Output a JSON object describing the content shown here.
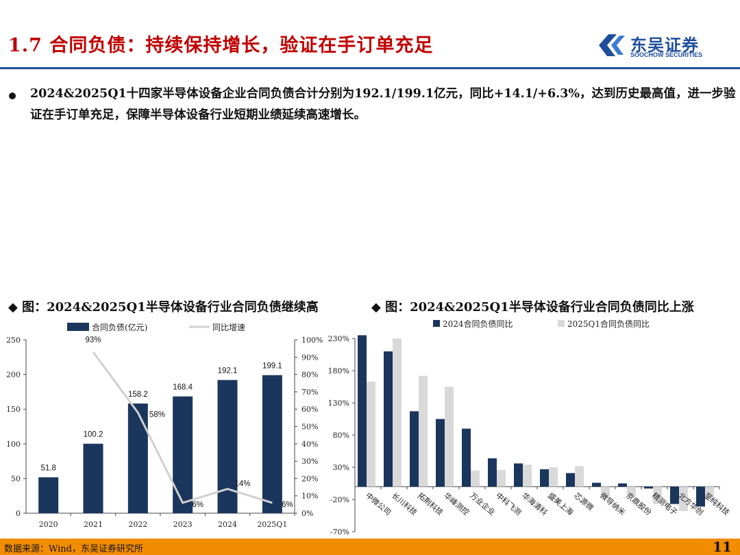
{
  "header": {
    "title": "1.7 合同负债：持续保持增长，验证在手订单充足"
  },
  "logo": {
    "cn": "东吴证券",
    "en": "SOOCHOW SECURITIES"
  },
  "body": {
    "paragraph": "2024&2025Q1十四家半导体设备企业合同负债合计分别为192.1/199.1亿元，同比+14.1/+6.3%，达到历史最高值，进一步验证在手订单充足，保障半导体设备行业短期业绩延续高速增长。"
  },
  "chart1_title": "◆ 图：2024&2025Q1半导体设备行业合同负债继续高",
  "chart2_title": "◆ 图：2024&2025Q1半导体设备行业合同负债同比上涨",
  "footer": {
    "source": "数据来源：Wind，东吴证券研究所",
    "page": "11"
  },
  "colors": {
    "navy": "#1b365d",
    "gray": "#d9d9d9",
    "line": "#d0d0d0",
    "title_red": "#c00000",
    "footer_orange": "#f28c00"
  },
  "chart_data": [
    {
      "type": "bar",
      "categories": [
        "2020",
        "2021",
        "2022",
        "2023",
        "2024",
        "2025Q1"
      ],
      "series": [
        {
          "name": "合同负债(亿元)",
          "values": [
            51.8,
            100.2,
            158.2,
            168.4,
            192.1,
            199.1
          ],
          "labels": [
            "51.8",
            "100.2",
            "158.2",
            "168.4",
            "192.1",
            "199.1"
          ]
        },
        {
          "name": "同比增速",
          "type": "line",
          "axis": "right",
          "values": [
            null,
            93,
            58,
            6,
            14,
            6
          ],
          "labels": [
            "",
            "93%",
            "58%",
            "6%",
            "14%",
            "6%"
          ]
        }
      ],
      "yticks_left": [
        "0",
        "50",
        "100",
        "150",
        "200",
        "250"
      ],
      "ylim_left": [
        0,
        250
      ],
      "yticks_right": [
        "0%",
        "10%",
        "20%",
        "30%",
        "40%",
        "50%",
        "60%",
        "70%",
        "80%",
        "90%",
        "100%"
      ],
      "ylim_right": [
        0,
        100
      ],
      "legend": "top"
    },
    {
      "type": "bar",
      "categories": [
        "中微公司",
        "长川科技",
        "拓荆科技",
        "华峰测控",
        "万业企业",
        "中科飞测",
        "华海清科",
        "盛美上海",
        "芯源微",
        "微导纳米",
        "京鼎股份",
        "精测电子",
        "北方华创",
        "至纯科技"
      ],
      "series": [
        {
          "name": "2024合同负债同比",
          "values": [
            235,
            210,
            117,
            105,
            90,
            44,
            36,
            27,
            21,
            6,
            5,
            -3,
            -27,
            -31
          ]
        },
        {
          "name": "2025Q1合同负债同比",
          "values": [
            163,
            230,
            172,
            155,
            25,
            26,
            34,
            30,
            32,
            -17,
            -15,
            -27,
            -38,
            -21
          ]
        }
      ],
      "yticks": [
        "230%",
        "180%",
        "130%",
        "80%",
        "30%",
        "-20%",
        "-70%"
      ],
      "ylim": [
        -70,
        230
      ],
      "legend": "top"
    }
  ]
}
